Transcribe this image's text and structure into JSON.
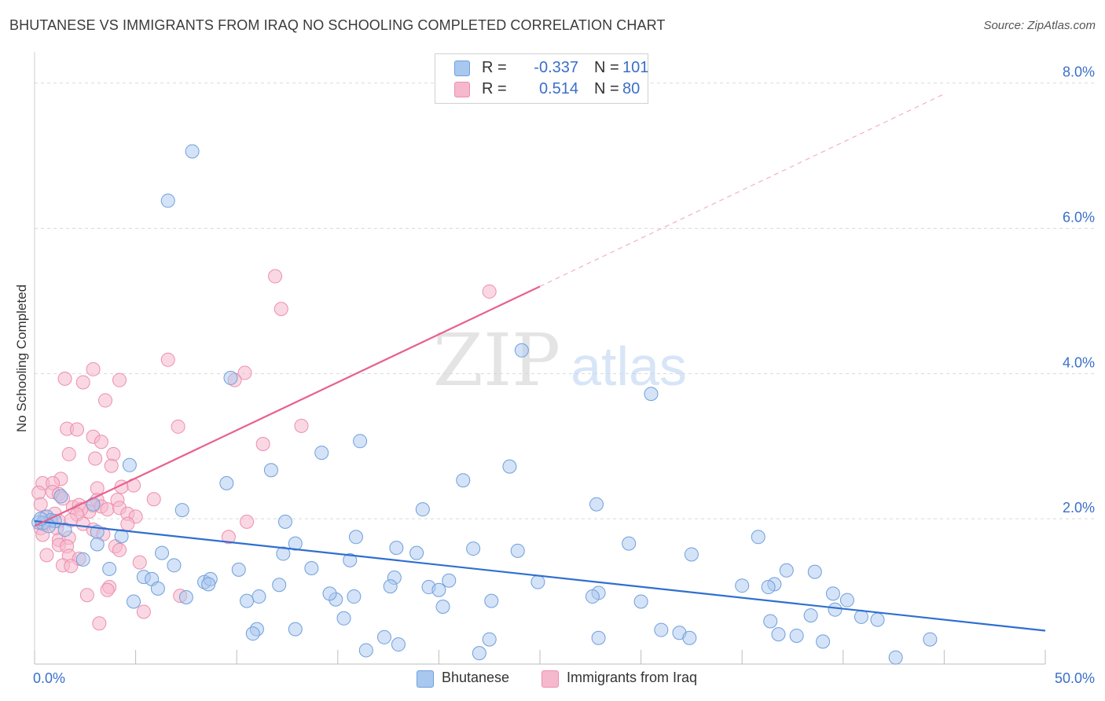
{
  "header": {
    "title": "BHUTANESE VS IMMIGRANTS FROM IRAQ NO SCHOOLING COMPLETED CORRELATION CHART",
    "source": "Source: ZipAtlas.com"
  },
  "watermark": {
    "zip": "ZIP",
    "atlas": "atlas"
  },
  "stats_legend": {
    "r_label": "R =",
    "n_label": "N =",
    "rows": [
      {
        "r": "-0.337",
        "n": "101",
        "color": "#a9c8f0"
      },
      {
        "r": "0.514",
        "n": "80",
        "color": "#f6b8cc"
      }
    ]
  },
  "colors": {
    "blue_fill": "#a9c8f0",
    "blue_stroke": "#6f9fdc",
    "blue_line": "#2f6fd0",
    "pink_fill": "#f6b8cc",
    "pink_stroke": "#ec8fae",
    "pink_line": "#e8608f",
    "axis_label": "#3a6fc8",
    "grid": "#d9d9d9"
  },
  "chart_data": {
    "type": "scatter",
    "title": "BHUTANESE VS IMMIGRANTS FROM IRAQ NO SCHOOLING COMPLETED CORRELATION CHART",
    "xlabel": "",
    "ylabel": "No Schooling Completed",
    "xlim": [
      0,
      50
    ],
    "ylim": [
      0,
      8.3
    ],
    "x_tick_labels": [
      "0.0%",
      "50.0%"
    ],
    "y_ticks": [
      2,
      4,
      6,
      8
    ],
    "y_tick_labels": [
      "2.0%",
      "4.0%",
      "6.0%",
      "8.0%"
    ],
    "grid": true,
    "legend_position": "bottom",
    "series": [
      {
        "name": "Bhutanese",
        "r": -0.337,
        "n": 101,
        "trend": {
          "x": [
            0,
            50
          ],
          "y": [
            1.97,
            0.46
          ],
          "style": "solid"
        },
        "points": [
          [
            7.8,
            7.06
          ],
          [
            6.6,
            6.38
          ],
          [
            9.7,
            3.94
          ],
          [
            11.7,
            2.67
          ],
          [
            16.1,
            3.07
          ],
          [
            24.1,
            4.32
          ],
          [
            30.5,
            3.72
          ],
          [
            14.2,
            2.91
          ],
          [
            21.2,
            2.53
          ],
          [
            23.5,
            2.72
          ],
          [
            9.5,
            2.49
          ],
          [
            7.3,
            2.12
          ],
          [
            19.2,
            2.13
          ],
          [
            27.8,
            2.2
          ],
          [
            4.7,
            2.74
          ],
          [
            1.3,
            2.31
          ],
          [
            2.9,
            2.2
          ],
          [
            0.6,
            2.03
          ],
          [
            0.8,
            1.98
          ],
          [
            1.0,
            1.97
          ],
          [
            0.2,
            1.95
          ],
          [
            0.4,
            1.94
          ],
          [
            0.7,
            1.9
          ],
          [
            1.5,
            1.85
          ],
          [
            3.1,
            1.82
          ],
          [
            4.3,
            1.76
          ],
          [
            12.4,
            1.96
          ],
          [
            15.9,
            1.75
          ],
          [
            35.8,
            1.75
          ],
          [
            3.1,
            1.65
          ],
          [
            6.3,
            1.53
          ],
          [
            12.9,
            1.66
          ],
          [
            17.9,
            1.6
          ],
          [
            18.9,
            1.53
          ],
          [
            21.7,
            1.59
          ],
          [
            23.9,
            1.56
          ],
          [
            29.4,
            1.66
          ],
          [
            32.5,
            1.51
          ],
          [
            2.4,
            1.44
          ],
          [
            6.9,
            1.36
          ],
          [
            12.3,
            1.52
          ],
          [
            15.6,
            1.43
          ],
          [
            3.7,
            1.31
          ],
          [
            10.1,
            1.3
          ],
          [
            13.7,
            1.32
          ],
          [
            37.2,
            1.29
          ],
          [
            38.6,
            1.27
          ],
          [
            5.4,
            1.2
          ],
          [
            5.8,
            1.17
          ],
          [
            8.4,
            1.13
          ],
          [
            8.7,
            1.17
          ],
          [
            17.8,
            1.19
          ],
          [
            20.5,
            1.15
          ],
          [
            24.9,
            1.13
          ],
          [
            35.0,
            1.08
          ],
          [
            6.1,
            1.04
          ],
          [
            8.6,
            1.1
          ],
          [
            12.1,
            1.09
          ],
          [
            17.6,
            1.07
          ],
          [
            19.5,
            1.06
          ],
          [
            20.0,
            1.02
          ],
          [
            36.6,
            1.1
          ],
          [
            27.9,
            0.98
          ],
          [
            27.6,
            0.93
          ],
          [
            36.3,
            1.06
          ],
          [
            7.5,
            0.92
          ],
          [
            11.1,
            0.93
          ],
          [
            14.9,
            0.89
          ],
          [
            15.8,
            0.93
          ],
          [
            10.5,
            0.87
          ],
          [
            4.9,
            0.86
          ],
          [
            14.6,
            0.97
          ],
          [
            22.6,
            0.87
          ],
          [
            30.0,
            0.86
          ],
          [
            39.5,
            0.97
          ],
          [
            39.6,
            0.75
          ],
          [
            40.2,
            0.88
          ],
          [
            20.2,
            0.79
          ],
          [
            15.3,
            0.63
          ],
          [
            38.4,
            0.67
          ],
          [
            36.4,
            0.59
          ],
          [
            40.9,
            0.65
          ],
          [
            41.7,
            0.61
          ],
          [
            12.9,
            0.48
          ],
          [
            11.0,
            0.48
          ],
          [
            10.8,
            0.42
          ],
          [
            17.3,
            0.37
          ],
          [
            22.5,
            0.34
          ],
          [
            27.9,
            0.36
          ],
          [
            31.0,
            0.47
          ],
          [
            31.9,
            0.43
          ],
          [
            32.4,
            0.36
          ],
          [
            36.8,
            0.41
          ],
          [
            37.7,
            0.39
          ],
          [
            39.0,
            0.31
          ],
          [
            44.3,
            0.34
          ],
          [
            16.4,
            0.19
          ],
          [
            18.0,
            0.27
          ],
          [
            22.0,
            0.15
          ],
          [
            42.6,
            0.09
          ],
          [
            0.3,
            2.0
          ]
        ]
      },
      {
        "name": "Immigrants from Iraq",
        "r": 0.514,
        "n": 80,
        "trend": {
          "x": [
            0,
            25,
            45
          ],
          "y": [
            1.9,
            5.2,
            7.85
          ],
          "solid_until": 25,
          "style": "solid-then-dashed"
        },
        "points": [
          [
            11.9,
            5.34
          ],
          [
            22.5,
            5.13
          ],
          [
            12.2,
            4.89
          ],
          [
            6.6,
            4.19
          ],
          [
            2.9,
            4.06
          ],
          [
            10.4,
            4.01
          ],
          [
            1.5,
            3.93
          ],
          [
            2.4,
            3.88
          ],
          [
            4.2,
            3.91
          ],
          [
            9.9,
            3.91
          ],
          [
            3.5,
            3.63
          ],
          [
            7.1,
            3.27
          ],
          [
            13.2,
            3.28
          ],
          [
            1.6,
            3.24
          ],
          [
            2.1,
            3.23
          ],
          [
            2.9,
            3.13
          ],
          [
            3.3,
            3.06
          ],
          [
            11.3,
            3.03
          ],
          [
            1.7,
            2.89
          ],
          [
            3.9,
            2.89
          ],
          [
            3.0,
            2.83
          ],
          [
            3.8,
            2.73
          ],
          [
            1.3,
            2.55
          ],
          [
            0.4,
            2.49
          ],
          [
            0.9,
            2.49
          ],
          [
            4.3,
            2.44
          ],
          [
            4.9,
            2.46
          ],
          [
            0.2,
            2.36
          ],
          [
            0.9,
            2.37
          ],
          [
            1.2,
            2.34
          ],
          [
            3.1,
            2.42
          ],
          [
            1.4,
            2.28
          ],
          [
            3.1,
            2.26
          ],
          [
            5.9,
            2.27
          ],
          [
            4.1,
            2.26
          ],
          [
            0.3,
            2.2
          ],
          [
            1.9,
            2.16
          ],
          [
            2.2,
            2.19
          ],
          [
            2.9,
            2.18
          ],
          [
            3.3,
            2.17
          ],
          [
            3.6,
            2.13
          ],
          [
            4.2,
            2.15
          ],
          [
            2.7,
            2.1
          ],
          [
            2.3,
            2.13
          ],
          [
            1.0,
            2.07
          ],
          [
            2.1,
            2.06
          ],
          [
            4.6,
            2.07
          ],
          [
            5.0,
            2.03
          ],
          [
            0.5,
            2.02
          ],
          [
            1.2,
            1.97
          ],
          [
            1.8,
            1.98
          ],
          [
            0.5,
            1.92
          ],
          [
            2.4,
            1.93
          ],
          [
            4.6,
            1.93
          ],
          [
            10.5,
            1.96
          ],
          [
            0.3,
            1.87
          ],
          [
            1.1,
            1.87
          ],
          [
            2.9,
            1.85
          ],
          [
            3.4,
            1.79
          ],
          [
            0.4,
            1.78
          ],
          [
            1.2,
            1.71
          ],
          [
            1.7,
            1.74
          ],
          [
            9.6,
            1.75
          ],
          [
            1.2,
            1.64
          ],
          [
            1.6,
            1.62
          ],
          [
            4.0,
            1.62
          ],
          [
            4.2,
            1.57
          ],
          [
            0.6,
            1.5
          ],
          [
            1.7,
            1.49
          ],
          [
            2.2,
            1.45
          ],
          [
            5.2,
            1.4
          ],
          [
            1.4,
            1.36
          ],
          [
            1.8,
            1.35
          ],
          [
            3.7,
            1.06
          ],
          [
            3.6,
            1.02
          ],
          [
            2.6,
            0.95
          ],
          [
            7.2,
            0.94
          ],
          [
            5.4,
            0.72
          ],
          [
            3.2,
            0.56
          ],
          [
            0.5,
            1.95
          ]
        ]
      }
    ]
  },
  "bottom_legend": [
    {
      "label": "Bhutanese",
      "color": "#a9c8f0"
    },
    {
      "label": "Immigrants from Iraq",
      "color": "#f6b8cc"
    }
  ]
}
